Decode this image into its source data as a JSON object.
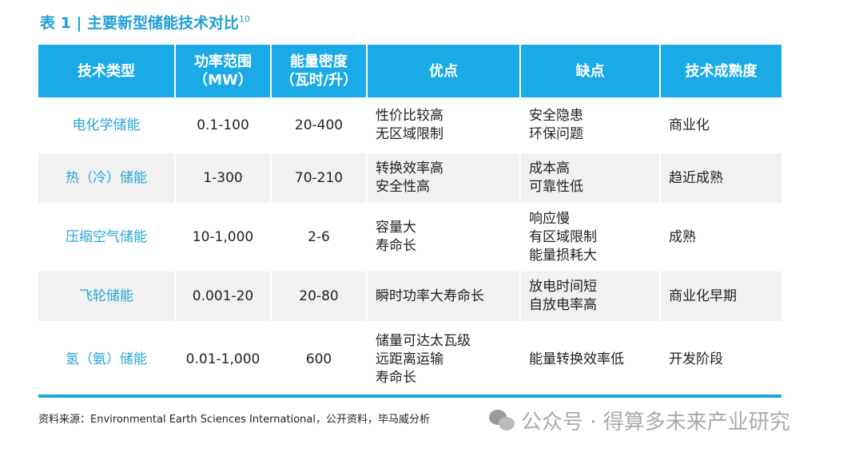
{
  "title": {
    "text": "表 1 | 主要新型储能技术对比",
    "sup": "10"
  },
  "headers": [
    "技术类型",
    [
      "功率范围",
      "（MW）"
    ],
    [
      "能量密度",
      "（瓦时/升）"
    ],
    "优点",
    "缺点",
    "技术成熟度"
  ],
  "rows": [
    {
      "type": "电化学储能",
      "power": "0.1-100",
      "density": "20-400",
      "pros": [
        "性价比较高",
        "无区域限制"
      ],
      "cons": [
        "安全隐患",
        "环保问题"
      ],
      "maturity": "商业化"
    },
    {
      "type": "热（冷）储能",
      "power": "1-300",
      "density": "70-210",
      "pros": [
        "转换效率高",
        "安全性高"
      ],
      "cons": [
        "成本高",
        "可靠性低"
      ],
      "maturity": "趋近成熟"
    },
    {
      "type": "压缩空气储能",
      "power": "10-1,000",
      "density": "2-6",
      "pros": [
        "容量大",
        "寿命长"
      ],
      "cons": [
        "响应慢",
        "有区域限制",
        "能量损耗大"
      ],
      "maturity": "成熟"
    },
    {
      "type": "飞轮储能",
      "power": "0.001-20",
      "density": "20-80",
      "pros": [
        "瞬时功率大寿命长"
      ],
      "cons": [
        "放电时间短",
        "自放电率高"
      ],
      "maturity": "商业化早期"
    },
    {
      "type": "氢（氨）储能",
      "power": "0.01-1,000",
      "density": "600",
      "pros": [
        "储量可达太瓦级",
        "远距离运输",
        "寿命长"
      ],
      "cons": [
        "能量转换效率低"
      ],
      "maturity": "开发阶段"
    }
  ],
  "source": "资料来源：Environmental Earth Sciences International，公开资料，毕马威分析",
  "watermark": "公众号 · 得算多未来产业研究"
}
